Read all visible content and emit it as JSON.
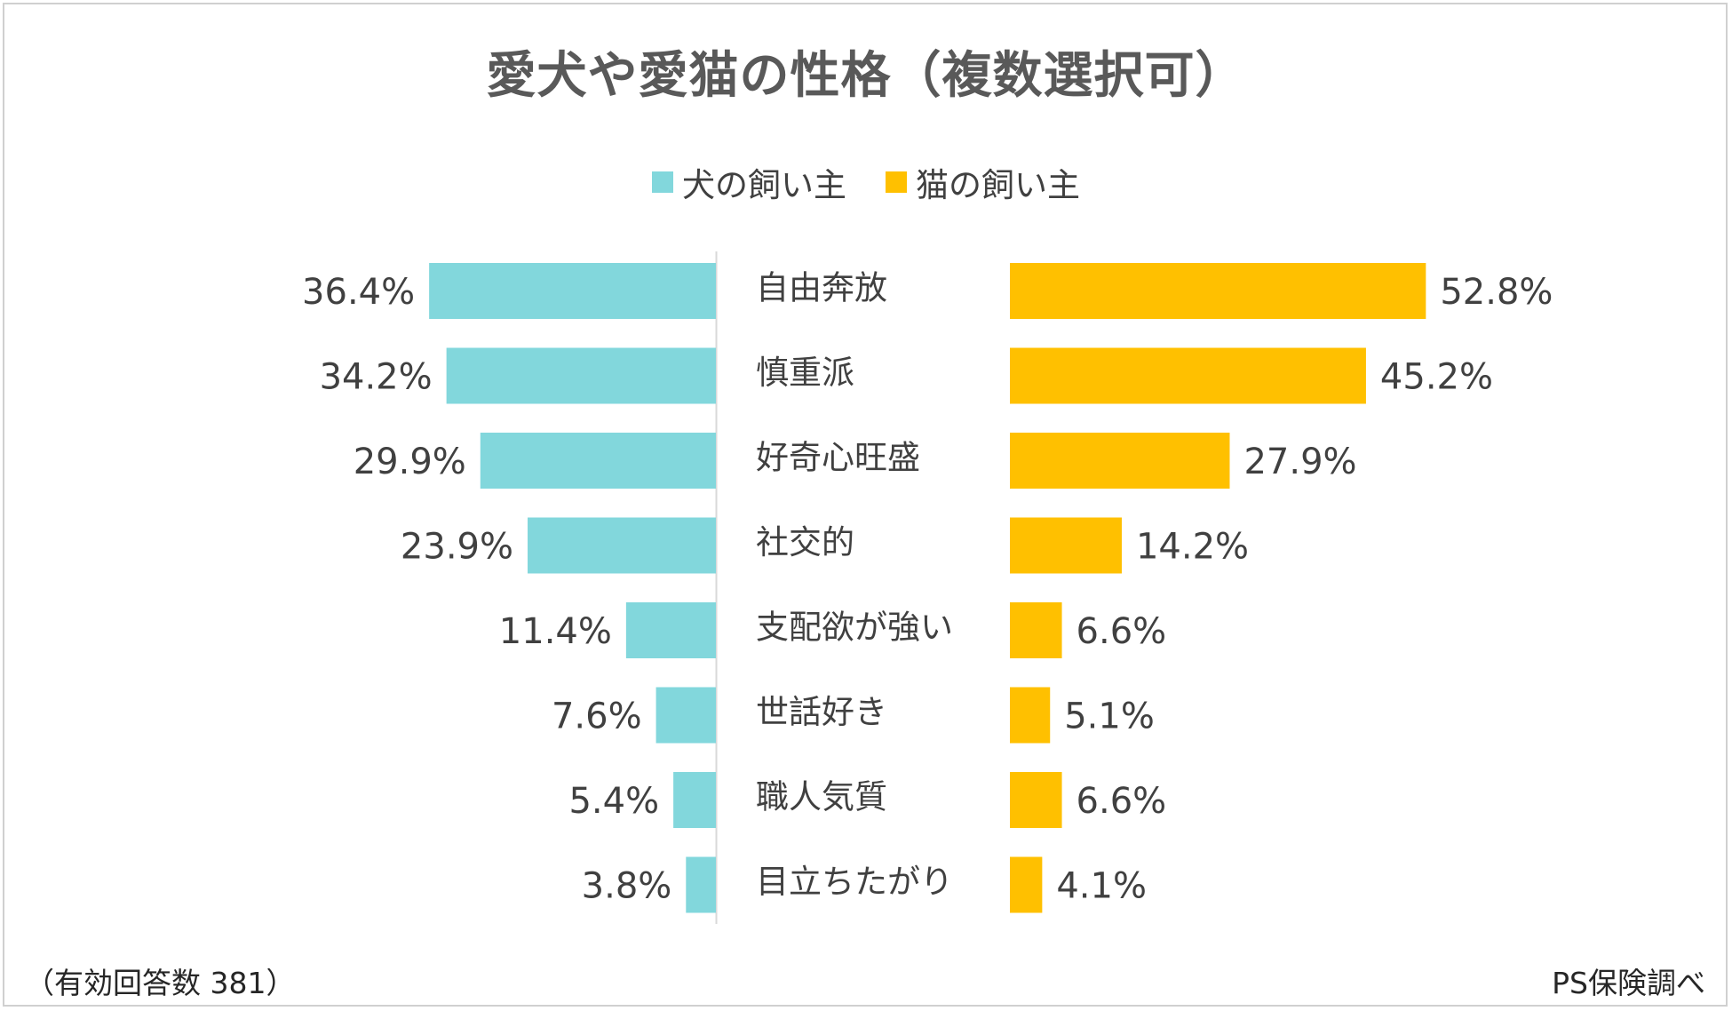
{
  "title": "愛犬や愛猫の性格（複数選択可）",
  "legend": [
    {
      "label": "犬の飼い主",
      "color": "#82d7dc"
    },
    {
      "label": "猫の飼い主",
      "color": "#ffc000"
    }
  ],
  "footer": {
    "note": "（有効回答数 381）",
    "source": "PS保険調べ"
  },
  "chart_data": {
    "type": "bar",
    "orientation": "horizontal-butterfly",
    "title": "愛犬や愛猫の性格（複数選択可）",
    "categories": [
      "自由奔放",
      "慎重派",
      "好奇心旺盛",
      "社交的",
      "支配欲が強い",
      "世話好き",
      "職人気質",
      "目立ちたがり"
    ],
    "series": [
      {
        "name": "犬の飼い主",
        "color": "#82d7dc",
        "values": [
          36.4,
          34.2,
          29.9,
          23.9,
          11.4,
          7.6,
          5.4,
          3.8
        ],
        "labels": [
          "36.4%",
          "34.2%",
          "29.9%",
          "23.9%",
          "11.4%",
          "7.6%",
          "5.4%",
          "3.8%"
        ]
      },
      {
        "name": "猫の飼い主",
        "color": "#ffc000",
        "values": [
          52.8,
          45.2,
          27.9,
          14.2,
          6.6,
          5.1,
          6.6,
          4.1
        ],
        "labels": [
          "52.8%",
          "45.2%",
          "27.9%",
          "14.2%",
          "6.6%",
          "5.1%",
          "6.6%",
          "4.1%"
        ]
      }
    ],
    "unit": "%",
    "legend_position": "top",
    "grid": false
  }
}
